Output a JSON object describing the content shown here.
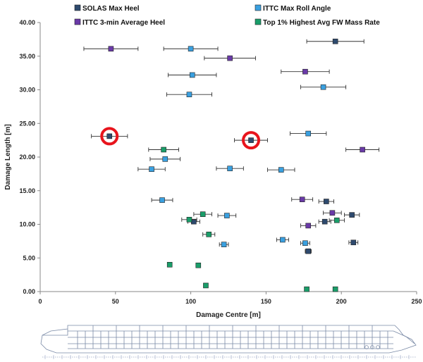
{
  "chart_data": {
    "type": "scatter",
    "xlabel": "Damage Centre [m]",
    "ylabel": "Damage Length [m]",
    "xlim": [
      0,
      250
    ],
    "ylim": [
      0,
      40
    ],
    "x_ticks": [
      "0",
      "50",
      "100",
      "150",
      "200",
      "250"
    ],
    "y_ticks": [
      "0.00",
      "5.00",
      "10.00",
      "15.00",
      "20.00",
      "25.00",
      "30.00",
      "35.00",
      "40.00"
    ],
    "grid": false,
    "legend_position": "top",
    "series": [
      {
        "name": "SOLAS Max Heel",
        "color": "#2e4a6e",
        "points": [
          {
            "x": 46,
            "y": 23.1,
            "xerr": 12
          },
          {
            "x": 140,
            "y": 22.5,
            "xerr": 11
          },
          {
            "x": 196,
            "y": 37.2,
            "xerr": 19
          },
          {
            "x": 190,
            "y": 13.4,
            "xerr": 5
          },
          {
            "x": 207,
            "y": 11.4,
            "xerr": 5
          },
          {
            "x": 189,
            "y": 10.4,
            "xerr": 4
          },
          {
            "x": 208,
            "y": 7.3,
            "xerr": 3
          },
          {
            "x": 178,
            "y": 6.0,
            "xerr": 2
          },
          {
            "x": 102,
            "y": 10.4,
            "xerr": 4
          }
        ]
      },
      {
        "name": "ITTC Max Roll Angle",
        "color": "#3aa0e0",
        "points": [
          {
            "x": 100,
            "y": 36.1,
            "xerr": 18
          },
          {
            "x": 101,
            "y": 32.2,
            "xerr": 16
          },
          {
            "x": 99,
            "y": 29.3,
            "xerr": 15
          },
          {
            "x": 188,
            "y": 30.4,
            "xerr": 15
          },
          {
            "x": 178,
            "y": 23.5,
            "xerr": 12
          },
          {
            "x": 83,
            "y": 19.7,
            "xerr": 10
          },
          {
            "x": 74,
            "y": 18.2,
            "xerr": 9
          },
          {
            "x": 126,
            "y": 18.3,
            "xerr": 9
          },
          {
            "x": 160,
            "y": 18.1,
            "xerr": 9
          },
          {
            "x": 81,
            "y": 13.6,
            "xerr": 7
          },
          {
            "x": 124,
            "y": 11.3,
            "xerr": 6
          },
          {
            "x": 161,
            "y": 7.7,
            "xerr": 4
          },
          {
            "x": 176,
            "y": 7.2,
            "xerr": 3
          },
          {
            "x": 122,
            "y": 7.0,
            "xerr": 3
          }
        ]
      },
      {
        "name": "ITTC 3-min Average Heel",
        "color": "#6a3aa8",
        "points": [
          {
            "x": 47,
            "y": 36.1,
            "xerr": 18
          },
          {
            "x": 126,
            "y": 34.7,
            "xerr": 17
          },
          {
            "x": 176,
            "y": 32.7,
            "xerr": 16
          },
          {
            "x": 214,
            "y": 21.1,
            "xerr": 11
          },
          {
            "x": 174,
            "y": 13.7,
            "xerr": 7
          },
          {
            "x": 194,
            "y": 11.7,
            "xerr": 6
          },
          {
            "x": 178,
            "y": 9.8,
            "xerr": 5
          }
        ]
      },
      {
        "name": "Top 1% Highest Avg FW Mass Rate",
        "color": "#1a9e6a",
        "points": [
          {
            "x": 82,
            "y": 21.1,
            "xerr": 10
          },
          {
            "x": 108,
            "y": 11.5,
            "xerr": 6
          },
          {
            "x": 99,
            "y": 10.7,
            "xerr": 5
          },
          {
            "x": 112,
            "y": 8.5,
            "xerr": 4
          },
          {
            "x": 197,
            "y": 10.6,
            "xerr": 5
          },
          {
            "x": 86,
            "y": 4.0,
            "xerr": 0
          },
          {
            "x": 105,
            "y": 3.9,
            "xerr": 0
          },
          {
            "x": 110,
            "y": 0.9,
            "xerr": 0
          },
          {
            "x": 177,
            "y": 0.35,
            "xerr": 0
          },
          {
            "x": 196,
            "y": 0.35,
            "xerr": 0
          }
        ]
      }
    ],
    "highlighted_points": [
      {
        "x": 46,
        "y": 23.1
      },
      {
        "x": 140,
        "y": 22.5
      }
    ],
    "highlight_color": "#e8141c"
  }
}
